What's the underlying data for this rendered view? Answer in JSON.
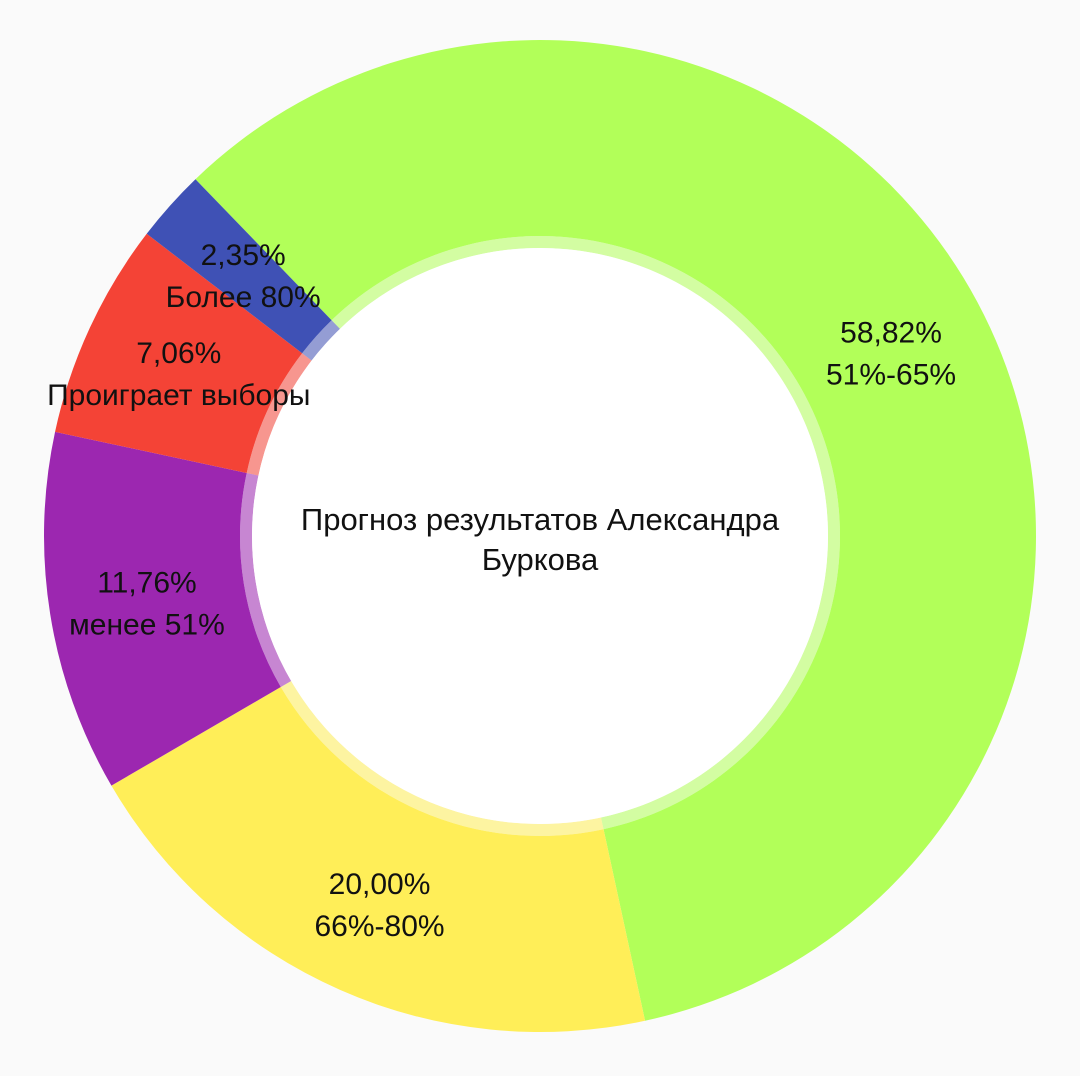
{
  "chart_data": {
    "type": "pie",
    "title": "Прогноз результатов Александра Буркова",
    "title_lines": [
      "Прогноз результатов Александра",
      "Буркова"
    ],
    "donut": true,
    "slices": [
      {
        "name": "51%-65%",
        "percent_label": "58,82%",
        "value": 58.82,
        "color": "#b2ff59"
      },
      {
        "name": "66%-80%",
        "percent_label": "20,00%",
        "value": 20.0,
        "color": "#ffee58"
      },
      {
        "name": "менее 51%",
        "percent_label": "11,76%",
        "value": 11.76,
        "color": "#9c27b0"
      },
      {
        "name": "Проиграет выборы",
        "percent_label": "7,06%",
        "value": 7.06,
        "color": "#f44336"
      },
      {
        "name": "Более 80%",
        "percent_label": "2,35%",
        "value": 2.35,
        "color": "#3f51b5"
      }
    ]
  }
}
